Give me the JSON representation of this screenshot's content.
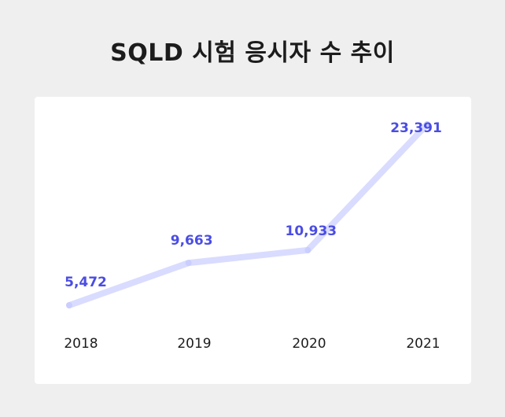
{
  "title": "SQLD 시험 응시자 수 추이",
  "colors": {
    "background": "#efefef",
    "card": "#ffffff",
    "line": "#d9dcff",
    "point": "#c9ceff",
    "value_label": "#4b4de3",
    "year_label": "#1c1c1c",
    "title": "#1c1c1c"
  },
  "chart_data": {
    "type": "line",
    "title": "SQLD 시험 응시자 수 추이",
    "categories": [
      "2018",
      "2019",
      "2020",
      "2021"
    ],
    "values": [
      5472,
      9663,
      10933,
      23391
    ],
    "value_labels": [
      "5,472",
      "9,663",
      "10,933",
      "23,391"
    ],
    "xlabel": "",
    "ylabel": "",
    "grid": false,
    "legend": "none"
  }
}
